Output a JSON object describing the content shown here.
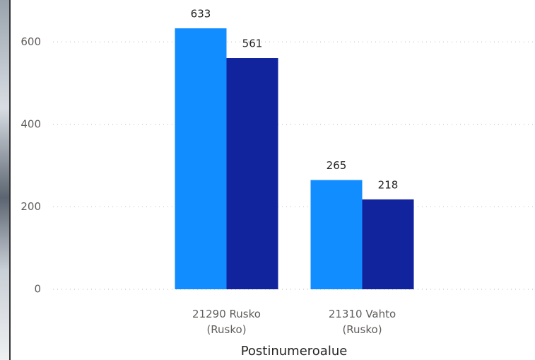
{
  "chart_data": {
    "type": "bar",
    "x_label": "Postinumeroalue",
    "categories": [
      "21290 Rusko (Rusko)",
      "21310 Vahto (Rusko)"
    ],
    "series": [
      {
        "color": "#118dff",
        "values": [
          633,
          265
        ]
      },
      {
        "color": "#12239e",
        "values": [
          561,
          218
        ]
      }
    ],
    "ylim": [
      0,
      700
    ],
    "yticks": [
      0,
      200,
      400,
      600
    ],
    "grid": true
  }
}
